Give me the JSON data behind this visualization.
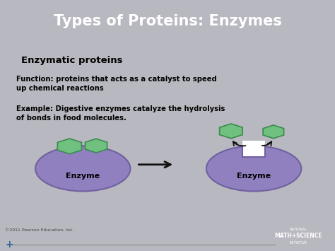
{
  "title": "Types of Proteins: Enzymes",
  "title_bg": "#2B5B9E",
  "title_color": "#FFFFFF",
  "slide_bg": "#B8B8C0",
  "content_bg": "#FFFFFF",
  "heading": "Enzymatic proteins",
  "function_text_bold": "Function: ",
  "function_text_normal": "proteins that acts as a catalyst to speed\nup chemical reactions",
  "example_text_bold": "Example: ",
  "example_text_normal": "Digestive enzymes catalyze the hydrolysis\nof bonds in food molecules.",
  "enzyme_label": "Enzyme",
  "enzyme_color": "#9080C0",
  "enzyme_edge": "#7060A0",
  "hexagon_color": "#70C080",
  "hexagon_outline": "#3A8A50",
  "footer_text": "©2011 Pearson Education, Inc.",
  "footer_color": "#444444",
  "arrow_color": "#111111"
}
